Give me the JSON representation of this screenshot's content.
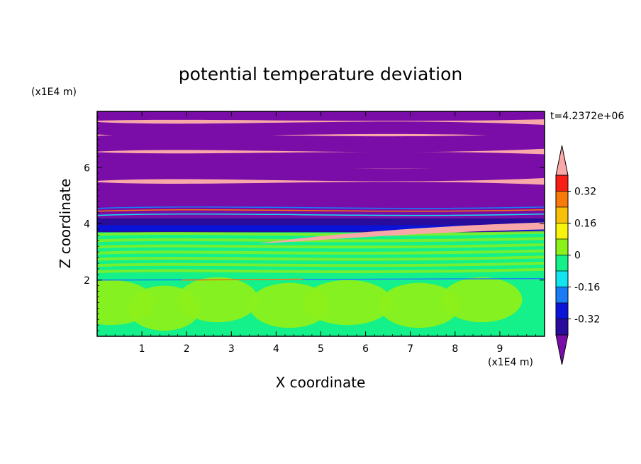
{
  "chart_data": {
    "type": "heatmap",
    "title": "potential temperature deviation",
    "xlabel": "X coordinate",
    "ylabel": "Z coordinate",
    "x_unit": "(x1E4 m)",
    "y_unit": "(x1E4 m)",
    "time_label": "t=4.2372e+06",
    "xlim": [
      0,
      10
    ],
    "ylim": [
      0,
      8
    ],
    "x_ticks": [
      "1",
      "2",
      "3",
      "4",
      "5",
      "6",
      "7",
      "8",
      "9"
    ],
    "y_ticks": [
      "2",
      "4",
      "6"
    ],
    "colorbar": {
      "tick_labels": [
        "0.32",
        "0.16",
        "0",
        "-0.16",
        "-0.32"
      ],
      "levels": [
        -0.4,
        -0.32,
        -0.24,
        -0.16,
        -0.08,
        0,
        0.08,
        0.16,
        0.24,
        0.32,
        0.4
      ],
      "colors": [
        "#7a0ca8",
        "#2a0c9c",
        "#0a14d8",
        "#1a7cf4",
        "#12e4f0",
        "#14f08a",
        "#8cf01a",
        "#f8f40c",
        "#f8c008",
        "#f87a0a",
        "#f81e16",
        "#f8a8a8"
      ]
    },
    "field_description": "stratified layers: pink/purple banding aloft, turbulent mixing near z=4, green/cyan near-zero field below 4",
    "grid": false
  }
}
